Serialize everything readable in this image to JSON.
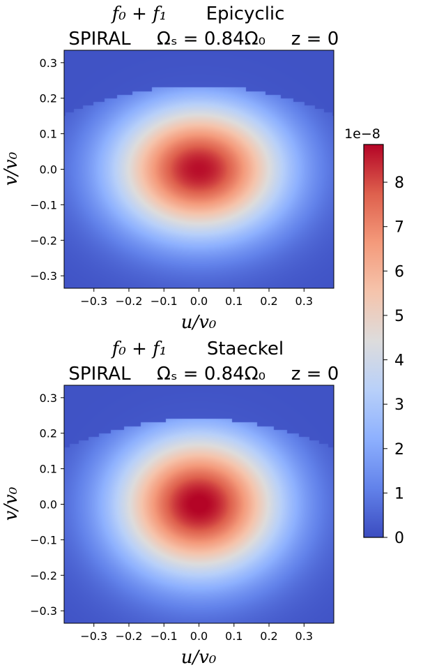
{
  "chart_data": [
    {
      "type": "heatmap",
      "title_lines": [
        "f₀ + f₁",
        "Epicyclic",
        "SPIRAL",
        "Ωₛ = 0.84Ω₀",
        "z = 0"
      ],
      "xlabel": "u/v₀",
      "ylabel": "v/v₀",
      "xlim": [
        -0.385,
        0.385
      ],
      "ylim": [
        -0.335,
        0.335
      ],
      "xticks": [
        -0.3,
        -0.2,
        -0.1,
        0.0,
        0.1,
        0.2,
        0.3
      ],
      "xtick_labels": [
        "−0.3",
        "−0.2",
        "−0.1",
        "0.0",
        "0.1",
        "0.2",
        "0.3"
      ],
      "yticks": [
        0.3,
        0.2,
        0.1,
        0.0,
        -0.1,
        -0.2,
        -0.3
      ],
      "ytick_labels": [
        "0.3",
        "0.2",
        "0.1",
        "0.0",
        "−0.1",
        "−0.2",
        "−0.3"
      ],
      "peak": {
        "u": 0.0,
        "v": 0.0,
        "value": 8.6e-08
      },
      "sigma_u": 0.17,
      "sigma_v": 0.13,
      "cutoff_v_at_u0": 0.235,
      "colormap": "coolwarm"
    },
    {
      "type": "heatmap",
      "title_lines": [
        "f₀ + f₁",
        "Staeckel",
        "SPIRAL",
        "Ωₛ = 0.84Ω₀",
        "z = 0"
      ],
      "xlabel": "u/v₀",
      "ylabel": "v/v₀",
      "xlim": [
        -0.385,
        0.385
      ],
      "ylim": [
        -0.335,
        0.335
      ],
      "xticks": [
        -0.3,
        -0.2,
        -0.1,
        0.0,
        0.1,
        0.2,
        0.3
      ],
      "xtick_labels": [
        "−0.3",
        "−0.2",
        "−0.1",
        "0.0",
        "0.1",
        "0.2",
        "0.3"
      ],
      "yticks": [
        0.3,
        0.2,
        0.1,
        0.0,
        -0.1,
        -0.2,
        -0.3
      ],
      "ytick_labels": [
        "0.3",
        "0.2",
        "0.1",
        "0.0",
        "−0.1",
        "−0.2",
        "−0.3"
      ],
      "peak": {
        "u": 0.0,
        "v": 0.0,
        "value": 8.8e-08
      },
      "sigma_u": 0.165,
      "sigma_v": 0.14,
      "cutoff_v_at_u0": 0.24,
      "colormap": "coolwarm"
    }
  ],
  "colorbar": {
    "offset_label": "1e−8",
    "ticks": [
      0,
      1,
      2,
      3,
      4,
      5,
      6,
      7,
      8
    ],
    "tick_labels": [
      "0",
      "1",
      "2",
      "3",
      "4",
      "5",
      "6",
      "7",
      "8"
    ],
    "vmin": 0,
    "vmax": 8.85
  },
  "colors": {
    "cmap_stops": [
      "#3b4cc0",
      "#6282ea",
      "#8db0fe",
      "#b8d0f9",
      "#dddcdc",
      "#f5c4ac",
      "#f49a7b",
      "#de604d",
      "#b40426"
    ]
  }
}
